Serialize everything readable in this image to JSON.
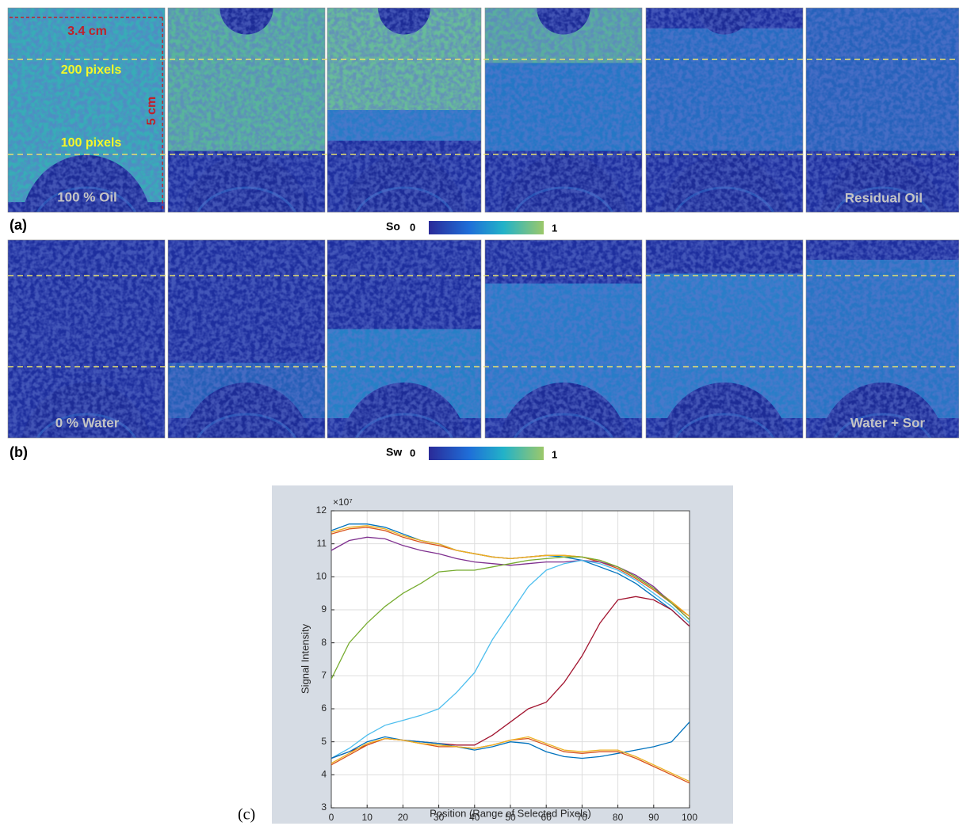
{
  "panel_a": {
    "label": "(a)",
    "width_label": "3.4 cm",
    "height_label": "5 cm",
    "upper_line_label": "200 pixels",
    "lower_line_label": "100 pixels",
    "first_caption": "100 % Oil",
    "last_caption": "Residual Oil",
    "colorbar_name": "So",
    "colorbar_min": "0",
    "colorbar_max": "1"
  },
  "panel_b": {
    "label": "(b)",
    "first_caption": "0 % Water",
    "last_caption": "Water + Sor",
    "colorbar_name": "Sw",
    "colorbar_min": "0",
    "colorbar_max": "1"
  },
  "panel_c": {
    "label": "(c)"
  },
  "chart_data": {
    "type": "line",
    "x_label": "Position (Range of Selected Pixels)",
    "y_label": "Signal Intensity",
    "y_multiplier": "×10⁷",
    "x": [
      0,
      5,
      10,
      15,
      20,
      25,
      30,
      35,
      40,
      45,
      50,
      55,
      60,
      65,
      70,
      75,
      80,
      85,
      90,
      95,
      100
    ],
    "xlim": [
      0,
      100
    ],
    "xticks": [
      0,
      10,
      20,
      30,
      40,
      50,
      60,
      70,
      80,
      90,
      100
    ],
    "ylim": [
      3,
      12
    ],
    "yticks": [
      3,
      4,
      5,
      6,
      7,
      8,
      9,
      10,
      11,
      12
    ],
    "grid": true,
    "series": [
      {
        "color": "#0072bd",
        "values": [
          11.4,
          11.6,
          11.6,
          11.5,
          11.3,
          11.1,
          11.0,
          10.8,
          10.7,
          10.6,
          10.55,
          10.6,
          10.65,
          10.6,
          10.5,
          10.3,
          10.1,
          9.8,
          9.4,
          9.0,
          8.5
        ]
      },
      {
        "color": "#d95319",
        "values": [
          11.3,
          11.45,
          11.5,
          11.4,
          11.2,
          11.05,
          10.95,
          10.8,
          10.7,
          10.6,
          10.55,
          10.6,
          10.65,
          10.65,
          10.6,
          10.45,
          10.25,
          9.95,
          9.6,
          9.2,
          8.8
        ]
      },
      {
        "color": "#edb120",
        "values": [
          11.35,
          11.5,
          11.55,
          11.45,
          11.25,
          11.1,
          11.0,
          10.8,
          10.7,
          10.6,
          10.55,
          10.6,
          10.65,
          10.65,
          10.6,
          10.5,
          10.3,
          10.0,
          9.65,
          9.25,
          8.8
        ]
      },
      {
        "color": "#7e2f8e",
        "values": [
          10.8,
          11.1,
          11.2,
          11.15,
          10.95,
          10.8,
          10.7,
          10.55,
          10.45,
          10.4,
          10.35,
          10.4,
          10.45,
          10.45,
          10.5,
          10.45,
          10.3,
          10.05,
          9.7,
          9.2,
          8.7
        ]
      },
      {
        "color": "#77ac30",
        "values": [
          6.9,
          8.0,
          8.6,
          9.1,
          9.5,
          9.8,
          10.15,
          10.2,
          10.2,
          10.3,
          10.4,
          10.5,
          10.55,
          10.6,
          10.6,
          10.5,
          10.3,
          10.0,
          9.65,
          9.2,
          8.7
        ]
      },
      {
        "color": "#4dbeee",
        "values": [
          4.5,
          4.8,
          5.2,
          5.5,
          5.65,
          5.8,
          6.0,
          6.5,
          7.1,
          8.1,
          8.9,
          9.7,
          10.2,
          10.4,
          10.5,
          10.4,
          10.2,
          9.9,
          9.5,
          9.1,
          8.6
        ]
      },
      {
        "color": "#a2142f",
        "values": [
          4.5,
          4.7,
          4.9,
          5.1,
          5.05,
          5.0,
          4.95,
          4.9,
          4.9,
          5.2,
          5.6,
          6.0,
          6.2,
          6.8,
          7.6,
          8.6,
          9.3,
          9.4,
          9.3,
          9.0,
          8.5
        ]
      },
      {
        "color": "#0072bd",
        "values": [
          4.5,
          4.7,
          5.0,
          5.15,
          5.05,
          5.0,
          4.95,
          4.85,
          4.75,
          4.85,
          5.0,
          4.95,
          4.7,
          4.55,
          4.5,
          4.55,
          4.65,
          4.75,
          4.85,
          5.0,
          5.6
        ]
      },
      {
        "color": "#d95319",
        "values": [
          4.3,
          4.6,
          4.9,
          5.1,
          5.05,
          4.95,
          4.85,
          4.85,
          4.8,
          4.9,
          5.05,
          5.1,
          4.9,
          4.7,
          4.65,
          4.7,
          4.7,
          4.5,
          4.25,
          4.0,
          3.75
        ]
      },
      {
        "color": "#edb120",
        "values": [
          4.35,
          4.65,
          4.95,
          5.1,
          5.05,
          4.95,
          4.9,
          4.85,
          4.8,
          4.9,
          5.05,
          5.15,
          4.95,
          4.75,
          4.7,
          4.75,
          4.75,
          4.55,
          4.3,
          4.05,
          3.8
        ]
      }
    ]
  }
}
